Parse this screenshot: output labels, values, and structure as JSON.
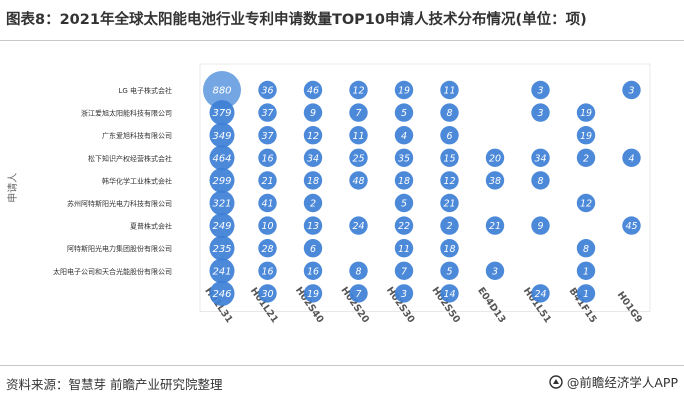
{
  "header": {
    "title": "图表8：2021年全球太阳能电池行业专利申请数量TOP10申请人技术分布情况(单位：项)"
  },
  "footer": {
    "source": "资料来源：智慧芽 前瞻产业研究院整理",
    "brand": "@前瞻经济学人APP"
  },
  "colors": {
    "bubble": "#3d7fd6",
    "bubble_light": "#86b6ea",
    "axis": "#d9d9d9",
    "text": "#333333"
  },
  "chart_data": {
    "type": "bubble",
    "ylabel": "申请人",
    "xlabel": "",
    "categories": [
      "H01L31",
      "H01L21",
      "H02S40",
      "H02S20",
      "H02S30",
      "H02S50",
      "E04D13",
      "H01L51",
      "B41F15",
      "H01G9"
    ],
    "applicants": [
      {
        "name": "LG 电子株式会社",
        "values": [
          880,
          36,
          46,
          12,
          19,
          11,
          null,
          3,
          null,
          3
        ]
      },
      {
        "name": "浙江爱旭太阳能科技有限公司",
        "values": [
          379,
          37,
          9,
          7,
          5,
          8,
          null,
          3,
          19,
          null
        ]
      },
      {
        "name": "广东爱旭科技有限公司",
        "values": [
          349,
          37,
          12,
          11,
          4,
          6,
          null,
          null,
          19,
          null
        ]
      },
      {
        "name": "松下知识产权经营株式会社",
        "values": [
          464,
          16,
          34,
          25,
          35,
          15,
          20,
          34,
          2,
          4
        ]
      },
      {
        "name": "韩华化学工业株式会社",
        "values": [
          299,
          21,
          18,
          48,
          18,
          12,
          38,
          8,
          null,
          null
        ]
      },
      {
        "name": "苏州阿特斯阳光电力科技有限公司",
        "values": [
          321,
          41,
          2,
          null,
          5,
          21,
          null,
          null,
          12,
          null
        ]
      },
      {
        "name": "夏普株式会社",
        "values": [
          249,
          10,
          13,
          24,
          22,
          2,
          21,
          9,
          null,
          45
        ]
      },
      {
        "name": "阿特斯阳光电力集团股份有限公司",
        "values": [
          235,
          28,
          6,
          null,
          11,
          18,
          null,
          null,
          8,
          null
        ]
      },
      {
        "name": "太阳电子公司和天合光能股份有限公司",
        "values": [
          241,
          16,
          16,
          8,
          7,
          5,
          3,
          null,
          1,
          null
        ]
      },
      {
        "name": "",
        "values": [
          246,
          30,
          19,
          7,
          3,
          14,
          null,
          24,
          1,
          null
        ]
      }
    ]
  }
}
